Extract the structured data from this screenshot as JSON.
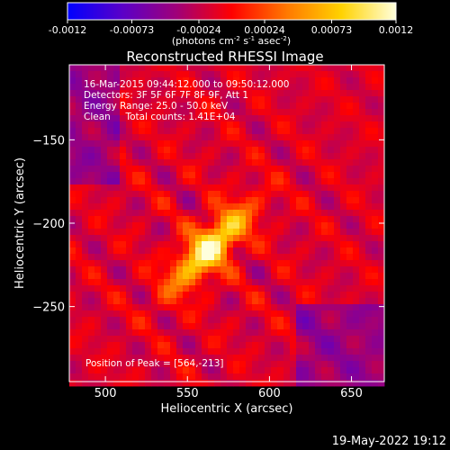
{
  "colorbar": {
    "ticks": [
      "-0.0012",
      "-0.00073",
      "-0.00024",
      "0.00024",
      "0.00073",
      "0.0012"
    ],
    "tick_values": [
      -0.0012,
      -0.00073,
      -0.00024,
      0.00024,
      0.00073,
      0.0012
    ],
    "range": [
      -0.0012,
      0.0012
    ],
    "unit_main": "(photons cm",
    "unit_exp1": "-2",
    "unit_mid1": " s",
    "unit_exp2": "-1",
    "unit_mid2": " asec",
    "unit_exp3": "-2",
    "unit_end": ")",
    "colors": [
      "#0000ff",
      "#5a00c8",
      "#a00078",
      "#ff0000",
      "#ff7800",
      "#ffd200",
      "#ffffdc"
    ]
  },
  "chart_data": {
    "type": "heatmap",
    "title": "Reconstructed RHESSI Image",
    "xlabel": "Heliocentric X (arcsec)",
    "ylabel": "Heliocentric Y (arcsec)",
    "xlim": [
      478,
      670
    ],
    "ylim": [
      -295,
      -105
    ],
    "x_ticks": [
      500,
      550,
      600,
      650
    ],
    "y_ticks": [
      -150,
      -200,
      -250
    ],
    "x_tick_labels": [
      "500",
      "550",
      "600",
      "650"
    ],
    "y_tick_labels": [
      "−150",
      "−200",
      "−250"
    ],
    "peak": [
      564,
      -213
    ],
    "colormap_range": [
      -0.0012,
      0.0012
    ],
    "info": [
      "16-Mar-2015 09:44:12.000 to 09:50:12.000",
      "Detectors: 3F 5F 6F 7F 8F 9F, Att 1",
      "Energy Range: 25.0 - 50.0 keV",
      "Clean     Total counts: 1.41E+04"
    ],
    "peak_label": "Position of Peak = [564,-213]"
  },
  "footer": {
    "timestamp": "19-May-2022 19:12"
  }
}
